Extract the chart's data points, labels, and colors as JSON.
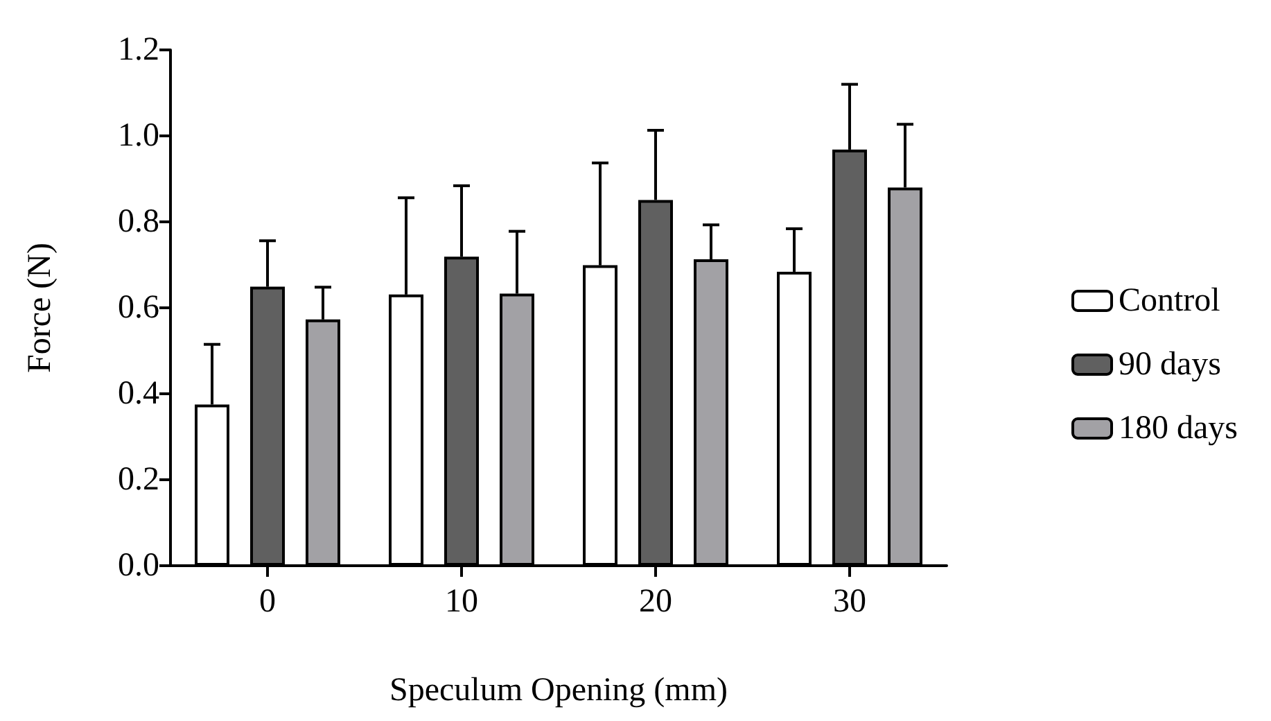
{
  "chart_data": {
    "type": "bar",
    "xlabel": "Speculum Opening (mm)",
    "ylabel": "Force (N)",
    "categories": [
      "0",
      "10",
      "20",
      "30"
    ],
    "ylim": [
      0,
      1.2
    ],
    "yticks": [
      {
        "value": 0,
        "label": "0.0"
      },
      0.2,
      0.4,
      0.6,
      0.8,
      {
        "value": 1,
        "label": "1.0"
      },
      1.2
    ],
    "grid": false,
    "legend": "right",
    "series": [
      {
        "name": "Control",
        "color": "#ffffff",
        "values": [
          0.375,
          0.631,
          0.699,
          0.684
        ],
        "errors": [
          [
            0.375,
            0.515
          ],
          [
            0.631,
            0.856
          ],
          [
            0.699,
            0.937
          ],
          [
            0.684,
            0.784
          ]
        ]
      },
      {
        "name": "90 days",
        "color": "#606060",
        "values": [
          0.649,
          0.719,
          0.851,
          0.968
        ],
        "errors": [
          [
            0.649,
            0.756
          ],
          [
            0.719,
            0.884
          ],
          [
            0.851,
            1.013
          ],
          [
            0.968,
            1.12
          ]
        ]
      },
      {
        "name": "180 days",
        "color": "#a2a1a5",
        "values": [
          0.573,
          0.633,
          0.713,
          0.88
        ],
        "errors": [
          [
            0.573,
            0.648
          ],
          [
            0.633,
            0.778
          ],
          [
            0.713,
            0.793
          ],
          [
            0.88,
            1.027
          ]
        ]
      }
    ]
  }
}
